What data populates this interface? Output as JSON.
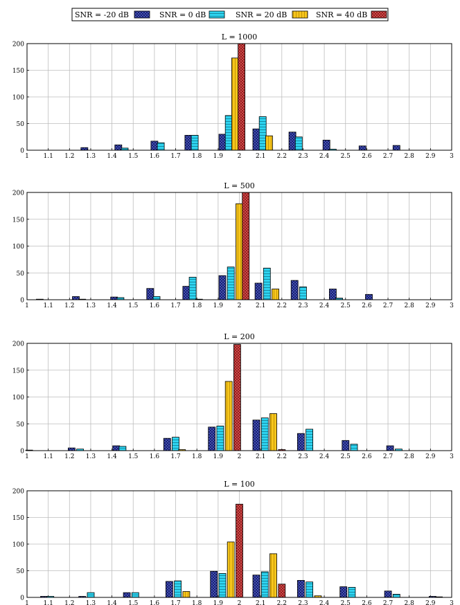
{
  "legend": {
    "placement": "top",
    "entries": [
      {
        "label": "SNR = -20 dB",
        "color": "#0d1466",
        "pattern": "crosshatch"
      },
      {
        "label": "SNR = 0 dB",
        "color": "#2ed4f0",
        "pattern": "horizontal-lines"
      },
      {
        "label": "SNR = 20 dB",
        "color": "#f6c61c",
        "pattern": "vertical-lines"
      },
      {
        "label": "SNR = 40 dB",
        "color": "#8b1414",
        "pattern": "crosshatch"
      }
    ]
  },
  "chart_data": [
    {
      "type": "bar",
      "title": "L = 1000",
      "xlim": [
        1,
        3
      ],
      "ylim": [
        0,
        200
      ],
      "xticks": [
        "1",
        "1.1",
        "1.2",
        "1.3",
        "1.4",
        "1.5",
        "1.6",
        "1.7",
        "1.8",
        "1.9",
        "2",
        "2.1",
        "2.2",
        "2.3",
        "2.4",
        "2.5",
        "2.6",
        "2.7",
        "2.8",
        "2.9",
        "3"
      ],
      "yticks": [
        "0",
        "50",
        "100",
        "150",
        "200"
      ],
      "grid": true,
      "series": [
        {
          "name": "SNR = -20 dB",
          "points": [
            [
              1.27,
              5
            ],
            [
              1.43,
              10
            ],
            [
              1.6,
              17
            ],
            [
              1.76,
              28
            ],
            [
              1.92,
              30
            ],
            [
              2.08,
              40
            ],
            [
              2.25,
              34
            ],
            [
              2.41,
              19
            ],
            [
              2.58,
              8
            ],
            [
              2.74,
              9
            ]
          ]
        },
        {
          "name": "SNR = 0 dB",
          "points": [
            [
              1.46,
              4
            ],
            [
              1.63,
              14
            ],
            [
              1.79,
              28
            ],
            [
              1.95,
              65
            ],
            [
              2.11,
              63
            ],
            [
              2.28,
              25
            ],
            [
              2.44,
              2
            ]
          ]
        },
        {
          "name": "SNR = 20 dB",
          "points": [
            [
              1.98,
              173
            ],
            [
              2.14,
              27
            ]
          ]
        },
        {
          "name": "SNR = 40 dB",
          "points": [
            [
              2.01,
              200
            ]
          ]
        }
      ]
    },
    {
      "type": "bar",
      "title": "L = 500",
      "xlim": [
        1,
        3
      ],
      "ylim": [
        0,
        200
      ],
      "xticks": [
        "1",
        "1.1",
        "1.2",
        "1.3",
        "1.4",
        "1.5",
        "1.6",
        "1.7",
        "1.8",
        "1.9",
        "2",
        "2.1",
        "2.2",
        "2.3",
        "2.4",
        "2.5",
        "2.6",
        "2.7",
        "2.8",
        "2.9",
        "3"
      ],
      "yticks": [
        "0",
        "50",
        "100",
        "150",
        "200"
      ],
      "grid": true,
      "series": [
        {
          "name": "SNR = -20 dB",
          "points": [
            [
              1.06,
              1
            ],
            [
              1.23,
              6
            ],
            [
              1.41,
              5
            ],
            [
              1.58,
              21
            ],
            [
              1.75,
              25
            ],
            [
              1.92,
              45
            ],
            [
              2.09,
              31
            ],
            [
              2.26,
              36
            ],
            [
              2.44,
              20
            ],
            [
              2.61,
              10
            ]
          ]
        },
        {
          "name": "SNR = 0 dB",
          "points": [
            [
              1.26,
              1
            ],
            [
              1.44,
              4
            ],
            [
              1.61,
              6
            ],
            [
              1.78,
              42
            ],
            [
              1.96,
              61
            ],
            [
              2.13,
              59
            ],
            [
              2.3,
              24
            ],
            [
              2.47,
              3
            ]
          ]
        },
        {
          "name": "SNR = 20 dB",
          "points": [
            [
              1.81,
              1
            ],
            [
              2.0,
              179
            ],
            [
              2.17,
              20
            ]
          ]
        },
        {
          "name": "SNR = 40 dB",
          "points": [
            [
              2.03,
              200
            ]
          ]
        }
      ]
    },
    {
      "type": "bar",
      "title": "L = 200",
      "xlim": [
        1,
        3
      ],
      "ylim": [
        0,
        200
      ],
      "xticks": [
        "1",
        "1.1",
        "1.2",
        "1.3",
        "1.4",
        "1.5",
        "1.6",
        "1.7",
        "1.8",
        "1.9",
        "2",
        "2.1",
        "2.2",
        "2.3",
        "2.4",
        "2.5",
        "2.6",
        "2.7",
        "2.8",
        "2.9",
        "3"
      ],
      "yticks": [
        "0",
        "50",
        "100",
        "150",
        "200"
      ],
      "grid": true,
      "series": [
        {
          "name": "SNR = -20 dB",
          "points": [
            [
              1.01,
              1
            ],
            [
              1.21,
              5
            ],
            [
              1.42,
              9
            ],
            [
              1.66,
              23
            ],
            [
              1.87,
              44
            ],
            [
              2.08,
              57
            ],
            [
              2.29,
              32
            ],
            [
              2.5,
              19
            ],
            [
              2.71,
              9
            ]
          ]
        },
        {
          "name": "SNR = 0 dB",
          "points": [
            [
              1.25,
              3
            ],
            [
              1.45,
              8
            ],
            [
              1.7,
              25
            ],
            [
              1.91,
              46
            ],
            [
              2.12,
              61
            ],
            [
              2.33,
              40
            ],
            [
              2.54,
              12
            ],
            [
              2.75,
              3
            ]
          ]
        },
        {
          "name": "SNR = 20 dB",
          "points": [
            [
              1.73,
              2
            ],
            [
              1.95,
              129
            ],
            [
              2.16,
              69
            ]
          ]
        },
        {
          "name": "SNR = 40 dB",
          "points": [
            [
              1.99,
              198
            ],
            [
              2.2,
              2
            ]
          ]
        }
      ]
    },
    {
      "type": "bar",
      "title": "L = 100",
      "xlim": [
        1,
        3
      ],
      "ylim": [
        0,
        200
      ],
      "xticks": [
        "1",
        "1.1",
        "1.2",
        "1.3",
        "1.4",
        "1.5",
        "1.6",
        "1.7",
        "1.8",
        "1.9",
        "2",
        "2.1",
        "2.2",
        "2.3",
        "2.4",
        "2.5",
        "2.6",
        "2.7",
        "2.8",
        "2.9",
        "3"
      ],
      "yticks": [
        "0",
        "50",
        "100",
        "150",
        "200"
      ],
      "grid": true,
      "series": [
        {
          "name": "SNR = -20 dB",
          "points": [
            [
              1.08,
              2
            ],
            [
              1.26,
              2
            ],
            [
              1.47,
              9
            ],
            [
              1.67,
              30
            ],
            [
              1.88,
              49
            ],
            [
              2.08,
              42
            ],
            [
              2.29,
              32
            ],
            [
              2.49,
              20
            ],
            [
              2.7,
              12
            ],
            [
              2.91,
              2
            ]
          ]
        },
        {
          "name": "SNR = 0 dB",
          "points": [
            [
              1.11,
              2
            ],
            [
              1.3,
              9
            ],
            [
              1.51,
              9
            ],
            [
              1.71,
              31
            ],
            [
              1.92,
              45
            ],
            [
              2.12,
              48
            ],
            [
              2.33,
              29
            ],
            [
              2.53,
              19
            ],
            [
              2.74,
              6
            ],
            [
              2.94,
              1
            ]
          ]
        },
        {
          "name": "SNR = 20 dB",
          "points": [
            [
              1.75,
              11
            ],
            [
              1.96,
              104
            ],
            [
              2.16,
              82
            ],
            [
              2.37,
              3
            ]
          ]
        },
        {
          "name": "SNR = 40 dB",
          "points": [
            [
              2.0,
              175
            ],
            [
              2.2,
              25
            ]
          ]
        }
      ]
    }
  ]
}
